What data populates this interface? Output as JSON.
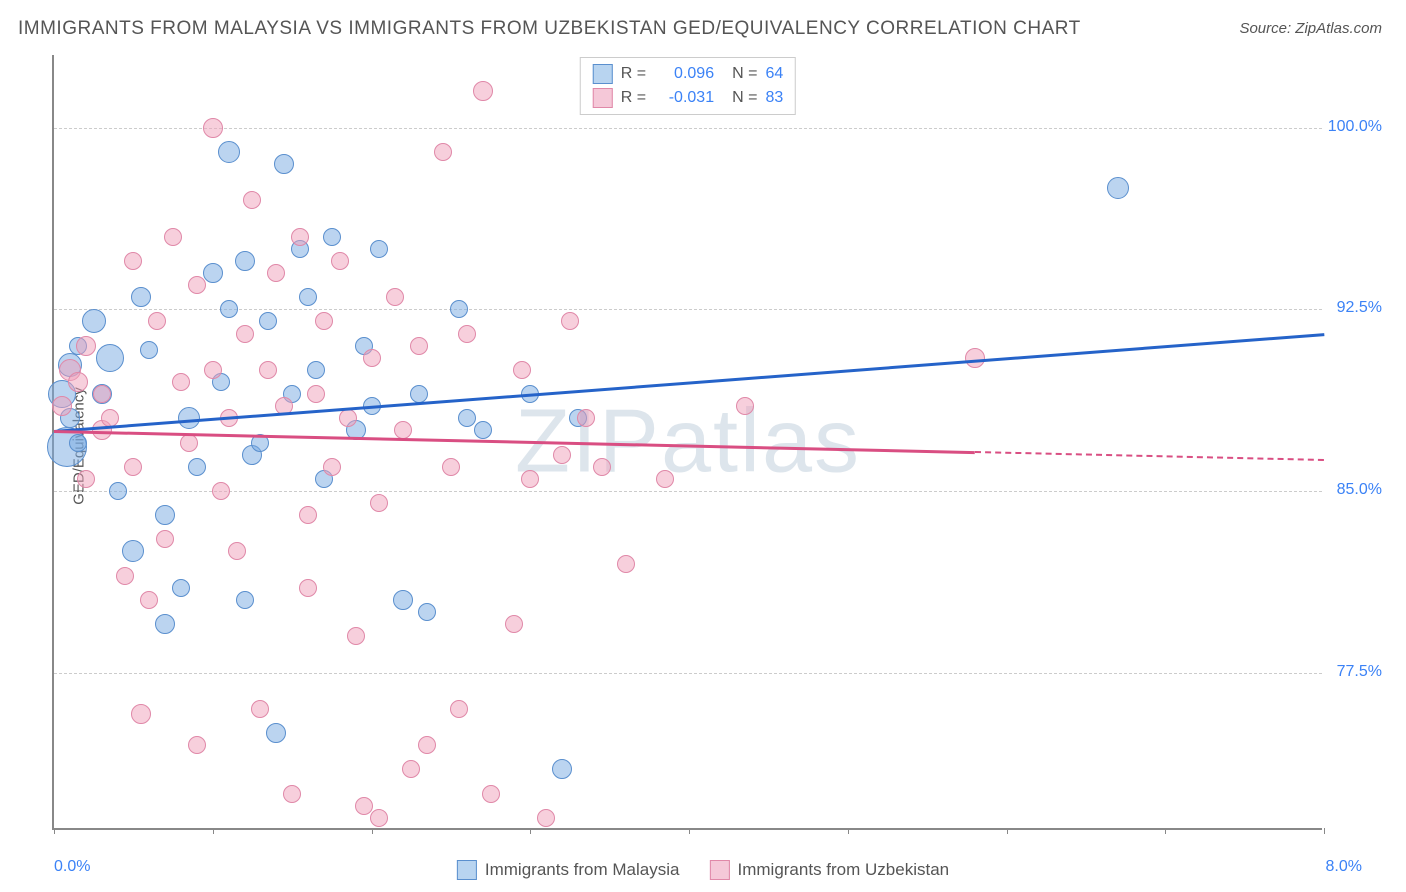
{
  "title": "IMMIGRANTS FROM MALAYSIA VS IMMIGRANTS FROM UZBEKISTAN GED/EQUIVALENCY CORRELATION CHART",
  "source": "Source: ZipAtlas.com",
  "watermark": "ZIPatlas",
  "y_axis_label": "GED/Equivalency",
  "x_range_label_left": "0.0%",
  "x_range_label_right": "8.0%",
  "chart": {
    "type": "scatter",
    "xlim": [
      0.0,
      8.0
    ],
    "ylim": [
      71.0,
      103.0
    ],
    "y_ticks": [
      {
        "value": 77.5,
        "label": "77.5%"
      },
      {
        "value": 85.0,
        "label": "85.0%"
      },
      {
        "value": 92.5,
        "label": "92.5%"
      },
      {
        "value": 100.0,
        "label": "100.0%"
      }
    ],
    "x_tick_positions": [
      0.0,
      1.0,
      2.0,
      3.0,
      4.0,
      5.0,
      6.0,
      7.0,
      8.0
    ],
    "background_color": "#ffffff",
    "grid_color": "#cccccc",
    "series": [
      {
        "name": "Immigrants from Malaysia",
        "fill_color": "rgba(120, 170, 225, 0.5)",
        "stroke_color": "#5a8fce",
        "line_color": "#2563c9",
        "swatch_fill": "#b8d4f0",
        "swatch_border": "#5a8fce",
        "r_label": "R =",
        "r_value": "0.096",
        "n_label": "N =",
        "n_value": "64",
        "trend": {
          "x1": 0.0,
          "y1": 87.5,
          "x2": 8.0,
          "y2": 91.5
        },
        "trend_dash_from": 8.0,
        "points": [
          {
            "x": 0.05,
            "y": 89.0,
            "r": 14
          },
          {
            "x": 0.08,
            "y": 86.8,
            "r": 20
          },
          {
            "x": 0.1,
            "y": 88.0,
            "r": 10
          },
          {
            "x": 0.1,
            "y": 90.2,
            "r": 12
          },
          {
            "x": 0.15,
            "y": 91.0,
            "r": 9
          },
          {
            "x": 0.15,
            "y": 87.0,
            "r": 9
          },
          {
            "x": 0.25,
            "y": 92.0,
            "r": 12
          },
          {
            "x": 0.3,
            "y": 89.0,
            "r": 10
          },
          {
            "x": 0.35,
            "y": 90.5,
            "r": 14
          },
          {
            "x": 0.4,
            "y": 85.0,
            "r": 9
          },
          {
            "x": 0.5,
            "y": 82.5,
            "r": 11
          },
          {
            "x": 0.55,
            "y": 93.0,
            "r": 10
          },
          {
            "x": 0.6,
            "y": 90.8,
            "r": 9
          },
          {
            "x": 0.7,
            "y": 84.0,
            "r": 10
          },
          {
            "x": 0.7,
            "y": 79.5,
            "r": 10
          },
          {
            "x": 0.8,
            "y": 81.0,
            "r": 9
          },
          {
            "x": 0.85,
            "y": 88.0,
            "r": 11
          },
          {
            "x": 0.9,
            "y": 86.0,
            "r": 9
          },
          {
            "x": 1.0,
            "y": 94.0,
            "r": 10
          },
          {
            "x": 1.05,
            "y": 89.5,
            "r": 9
          },
          {
            "x": 1.1,
            "y": 99.0,
            "r": 11
          },
          {
            "x": 1.1,
            "y": 92.5,
            "r": 9
          },
          {
            "x": 1.2,
            "y": 94.5,
            "r": 10
          },
          {
            "x": 1.2,
            "y": 80.5,
            "r": 9
          },
          {
            "x": 1.25,
            "y": 86.5,
            "r": 10
          },
          {
            "x": 1.3,
            "y": 87.0,
            "r": 9
          },
          {
            "x": 1.35,
            "y": 92.0,
            "r": 9
          },
          {
            "x": 1.4,
            "y": 75.0,
            "r": 10
          },
          {
            "x": 1.45,
            "y": 98.5,
            "r": 10
          },
          {
            "x": 1.5,
            "y": 89.0,
            "r": 9
          },
          {
            "x": 1.55,
            "y": 95.0,
            "r": 9
          },
          {
            "x": 1.6,
            "y": 93.0,
            "r": 9
          },
          {
            "x": 1.65,
            "y": 90.0,
            "r": 9
          },
          {
            "x": 1.7,
            "y": 85.5,
            "r": 9
          },
          {
            "x": 1.75,
            "y": 95.5,
            "r": 9
          },
          {
            "x": 1.9,
            "y": 87.5,
            "r": 10
          },
          {
            "x": 1.95,
            "y": 91.0,
            "r": 9
          },
          {
            "x": 2.0,
            "y": 88.5,
            "r": 9
          },
          {
            "x": 2.05,
            "y": 95.0,
            "r": 9
          },
          {
            "x": 2.2,
            "y": 80.5,
            "r": 10
          },
          {
            "x": 2.3,
            "y": 89.0,
            "r": 9
          },
          {
            "x": 2.35,
            "y": 80.0,
            "r": 9
          },
          {
            "x": 2.55,
            "y": 92.5,
            "r": 9
          },
          {
            "x": 2.6,
            "y": 88.0,
            "r": 9
          },
          {
            "x": 2.7,
            "y": 87.5,
            "r": 9
          },
          {
            "x": 3.0,
            "y": 89.0,
            "r": 9
          },
          {
            "x": 3.2,
            "y": 73.5,
            "r": 10
          },
          {
            "x": 3.3,
            "y": 88.0,
            "r": 9
          },
          {
            "x": 6.7,
            "y": 97.5,
            "r": 11
          }
        ]
      },
      {
        "name": "Immigrants from Uzbekistan",
        "fill_color": "rgba(240, 160, 185, 0.5)",
        "stroke_color": "#e088a8",
        "line_color": "#d94e82",
        "swatch_fill": "#f5c8d8",
        "swatch_border": "#e088a8",
        "r_label": "R =",
        "r_value": "-0.031",
        "n_label": "N =",
        "n_value": "83",
        "trend": {
          "x1": 0.0,
          "y1": 87.5,
          "x2": 8.0,
          "y2": 86.3
        },
        "trend_dash_from": 5.8,
        "points": [
          {
            "x": 0.05,
            "y": 88.5,
            "r": 10
          },
          {
            "x": 0.1,
            "y": 90.0,
            "r": 11
          },
          {
            "x": 0.15,
            "y": 89.5,
            "r": 10
          },
          {
            "x": 0.2,
            "y": 85.5,
            "r": 9
          },
          {
            "x": 0.2,
            "y": 91.0,
            "r": 10
          },
          {
            "x": 0.3,
            "y": 87.5,
            "r": 10
          },
          {
            "x": 0.3,
            "y": 89.0,
            "r": 9
          },
          {
            "x": 0.35,
            "y": 88.0,
            "r": 9
          },
          {
            "x": 0.45,
            "y": 81.5,
            "r": 9
          },
          {
            "x": 0.5,
            "y": 94.5,
            "r": 9
          },
          {
            "x": 0.5,
            "y": 86.0,
            "r": 9
          },
          {
            "x": 0.55,
            "y": 75.8,
            "r": 10
          },
          {
            "x": 0.6,
            "y": 80.5,
            "r": 9
          },
          {
            "x": 0.65,
            "y": 92.0,
            "r": 9
          },
          {
            "x": 0.7,
            "y": 83.0,
            "r": 9
          },
          {
            "x": 0.75,
            "y": 95.5,
            "r": 9
          },
          {
            "x": 0.8,
            "y": 89.5,
            "r": 9
          },
          {
            "x": 0.85,
            "y": 87.0,
            "r": 9
          },
          {
            "x": 0.9,
            "y": 74.5,
            "r": 9
          },
          {
            "x": 0.9,
            "y": 93.5,
            "r": 9
          },
          {
            "x": 1.0,
            "y": 90.0,
            "r": 9
          },
          {
            "x": 1.0,
            "y": 100.0,
            "r": 10
          },
          {
            "x": 1.05,
            "y": 85.0,
            "r": 9
          },
          {
            "x": 1.1,
            "y": 88.0,
            "r": 9
          },
          {
            "x": 1.15,
            "y": 82.5,
            "r": 9
          },
          {
            "x": 1.2,
            "y": 91.5,
            "r": 9
          },
          {
            "x": 1.25,
            "y": 97.0,
            "r": 9
          },
          {
            "x": 1.3,
            "y": 76.0,
            "r": 9
          },
          {
            "x": 1.35,
            "y": 90.0,
            "r": 9
          },
          {
            "x": 1.4,
            "y": 94.0,
            "r": 9
          },
          {
            "x": 1.45,
            "y": 88.5,
            "r": 9
          },
          {
            "x": 1.5,
            "y": 72.5,
            "r": 9
          },
          {
            "x": 1.55,
            "y": 95.5,
            "r": 9
          },
          {
            "x": 1.6,
            "y": 84.0,
            "r": 9
          },
          {
            "x": 1.6,
            "y": 81.0,
            "r": 9
          },
          {
            "x": 1.65,
            "y": 89.0,
            "r": 9
          },
          {
            "x": 1.7,
            "y": 92.0,
            "r": 9
          },
          {
            "x": 1.75,
            "y": 86.0,
            "r": 9
          },
          {
            "x": 1.8,
            "y": 94.5,
            "r": 9
          },
          {
            "x": 1.85,
            "y": 88.0,
            "r": 9
          },
          {
            "x": 1.9,
            "y": 79.0,
            "r": 9
          },
          {
            "x": 1.95,
            "y": 72.0,
            "r": 9
          },
          {
            "x": 2.0,
            "y": 90.5,
            "r": 9
          },
          {
            "x": 2.05,
            "y": 84.5,
            "r": 9
          },
          {
            "x": 2.05,
            "y": 71.5,
            "r": 9
          },
          {
            "x": 2.15,
            "y": 93.0,
            "r": 9
          },
          {
            "x": 2.2,
            "y": 87.5,
            "r": 9
          },
          {
            "x": 2.25,
            "y": 73.5,
            "r": 9
          },
          {
            "x": 2.3,
            "y": 91.0,
            "r": 9
          },
          {
            "x": 2.35,
            "y": 74.5,
            "r": 9
          },
          {
            "x": 2.45,
            "y": 99.0,
            "r": 9
          },
          {
            "x": 2.5,
            "y": 86.0,
            "r": 9
          },
          {
            "x": 2.55,
            "y": 76.0,
            "r": 9
          },
          {
            "x": 2.6,
            "y": 91.5,
            "r": 9
          },
          {
            "x": 2.7,
            "y": 101.5,
            "r": 10
          },
          {
            "x": 2.75,
            "y": 72.5,
            "r": 9
          },
          {
            "x": 2.9,
            "y": 79.5,
            "r": 9
          },
          {
            "x": 2.95,
            "y": 90.0,
            "r": 9
          },
          {
            "x": 3.0,
            "y": 85.5,
            "r": 9
          },
          {
            "x": 3.1,
            "y": 71.5,
            "r": 9
          },
          {
            "x": 3.2,
            "y": 86.5,
            "r": 9
          },
          {
            "x": 3.25,
            "y": 92.0,
            "r": 9
          },
          {
            "x": 3.35,
            "y": 88.0,
            "r": 9
          },
          {
            "x": 3.45,
            "y": 86.0,
            "r": 9
          },
          {
            "x": 3.6,
            "y": 82.0,
            "r": 9
          },
          {
            "x": 3.85,
            "y": 85.5,
            "r": 9
          },
          {
            "x": 4.35,
            "y": 88.5,
            "r": 9
          },
          {
            "x": 5.8,
            "y": 90.5,
            "r": 10
          }
        ]
      }
    ]
  }
}
